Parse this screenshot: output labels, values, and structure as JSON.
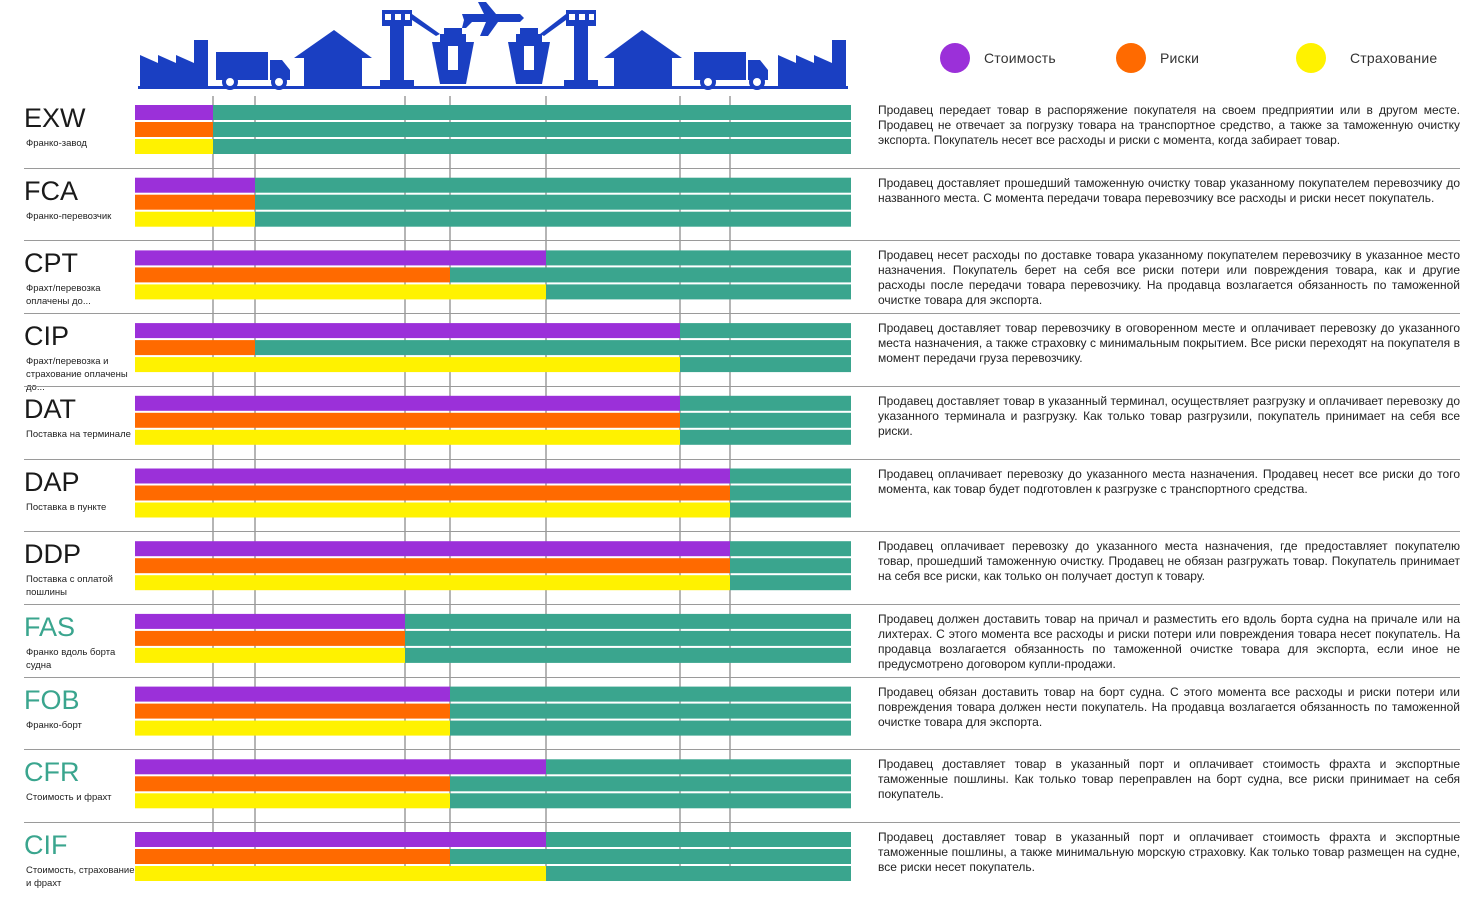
{
  "colors": {
    "cost": "#9b30d9",
    "risk": "#ff6a00",
    "insurance": "#fff200",
    "buyer": "#3aa58e",
    "icons": "#1a3fc2",
    "code_dark": "#1a1a1a",
    "code_teal": "#3aa58e"
  },
  "header_icons": [
    "factory-icon",
    "truck-icon",
    "warehouse-icon",
    "control-tower-icon",
    "ship-icon",
    "airplane-icon",
    "ship-icon",
    "control-tower-icon",
    "warehouse-icon",
    "truck-icon",
    "factory-icon"
  ],
  "legend": [
    {
      "label": "Стоимость",
      "color": "#9b30d9"
    },
    {
      "label": "Риски",
      "color": "#ff6a00"
    },
    {
      "label": "Страхование",
      "color": "#fff200"
    }
  ],
  "terms": [
    {
      "code": "EXW",
      "sub": "Франко-завод",
      "teal": false,
      "stages": [
        1,
        1,
        1
      ],
      "desc": "Продавец передает товар в распоряжение покупателя на своем предприятии или в другом месте. Продавец не отвечает за погрузку товара на транспортное средство, а также за таможенную очистку экспорта. Покупатель несет все расходы и риски с момента, когда забирает товар."
    },
    {
      "code": "FCA",
      "sub": "Франко-перевозчик",
      "teal": false,
      "stages": [
        2,
        2,
        2
      ],
      "desc": "Продавец доставляет прошедший таможенную очистку товар указанному покупателем перевозчику до названного места. С момента передачи товара перевозчику все расходы и риски несет покупатель."
    },
    {
      "code": "CPT",
      "sub": "Фрахт/перевозка оплачены до...",
      "teal": false,
      "stages": [
        5,
        4,
        5
      ],
      "desc": "Продавец несет расходы по доставке товара указанному покупателем перевозчику в указанное место назначения. Покупатель берет на себя все риски потери или повреждения товара, как и другие расходы после передачи товара перевозчику. На продавца возлагается обязанность по таможенной очистке товара для экспорта."
    },
    {
      "code": "CIP",
      "sub": "Фрахт/перевозка и страхование оплачены до...",
      "teal": false,
      "stages": [
        6,
        2,
        6
      ],
      "desc": "Продавец доставляет товар перевозчику в оговоренном месте и оплачивает перевозку до указанного места назначения, а также страховку с минимальным покрытием. Все риски переходят на покупателя в момент передачи груза перевозчику."
    },
    {
      "code": "DAT",
      "sub": "Поставка на терминале",
      "teal": false,
      "stages": [
        6,
        6,
        6
      ],
      "desc": "Продавец доставляет товар в указанный терминал, осуществляет разгрузку и оплачивает перевозку до указанного терминала и разгрузку. Как только товар разгрузили, покупатель принимает на себя все риски."
    },
    {
      "code": "DAP",
      "sub": "Поставка в пункте",
      "teal": false,
      "stages": [
        7,
        7,
        7
      ],
      "desc": "Продавец оплачивает перевозку до указанного места назначения. Продавец несет все риски до того момента, как товар будет подготовлен к разгрузке с транспортного средства."
    },
    {
      "code": "DDP",
      "sub": "Поставка с оплатой пошлины",
      "teal": false,
      "stages": [
        7,
        7,
        7
      ],
      "desc": "Продавец оплачивает перевозку до указанного места назначения, где предоставляет покупателю товар, прошедший таможенную очистку. Продавец не обязан разгружать товар. Покупатель принимает на себя все риски, как только он получает доступ к товару."
    },
    {
      "code": "FAS",
      "sub": "Франко вдоль борта судна",
      "teal": true,
      "stages": [
        3,
        3,
        3
      ],
      "desc": "Продавец должен доставить товар на причал и разместить его вдоль борта судна на причале или на лихтерах. С этого момента все расходы и риски потери или повреждения товара несет покупатель. На продавца возлагается обязанность по таможенной очистке товара для экспорта, если иное не предусмотрено договором купли-продажи."
    },
    {
      "code": "FOB",
      "sub": "Франко-борт",
      "teal": true,
      "stages": [
        4,
        4,
        4
      ],
      "desc": "Продавец обязан доставить товар на борт судна. С этого момента все расходы и риски потери или повреждения товара должен нести покупатель. На продавца возлагается обязанность по таможенной очистке товара для экспорта."
    },
    {
      "code": "CFR",
      "sub": "Стоимость и фрахт",
      "teal": true,
      "stages": [
        5,
        4,
        4
      ],
      "desc": "Продавец доставляет товар в указанный порт и оплачивает стоимость фрахта и экспортные таможенные пошлины. Как только товар переправлен на борт судна, все риски принимает на себя покупатель."
    },
    {
      "code": "CIF",
      "sub": "Стоимость, страхование и фрахт",
      "teal": true,
      "stages": [
        5,
        4,
        5
      ],
      "desc": "Продавец доставляет товар в указанный порт и оплачивает стоимость фрахта и экспортные таможенные пошлины, а также минимальную морскую страховку. Как только товар размещен на судне, все риски несет покупатель."
    }
  ]
}
